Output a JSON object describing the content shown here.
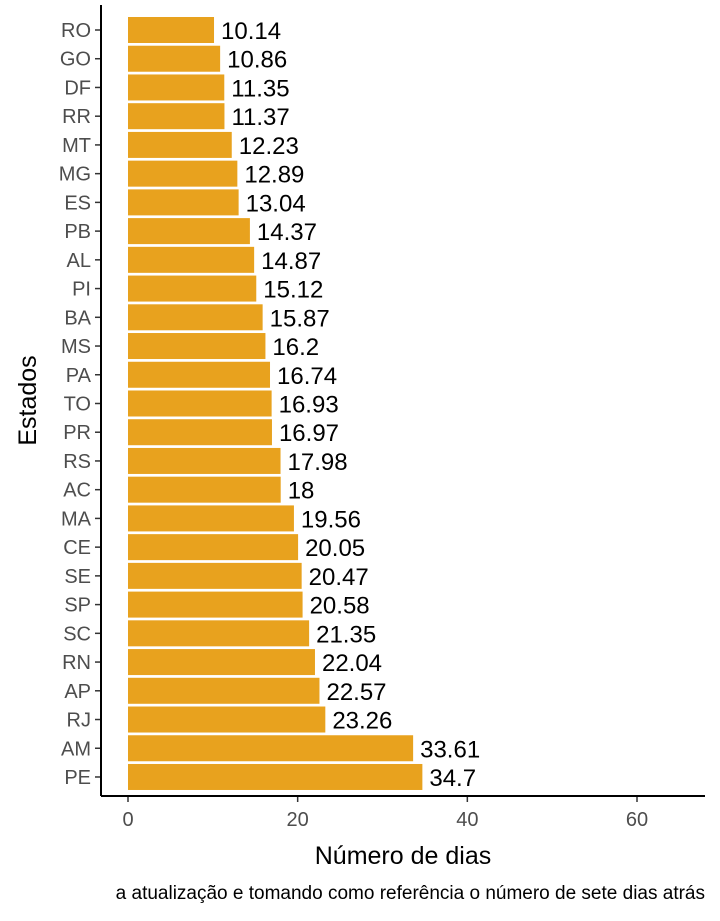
{
  "chart_data": {
    "type": "bar",
    "orientation": "horizontal",
    "categories": [
      "RO",
      "GO",
      "DF",
      "RR",
      "MT",
      "MG",
      "ES",
      "PB",
      "AL",
      "PI",
      "BA",
      "MS",
      "PA",
      "TO",
      "PR",
      "RS",
      "AC",
      "MA",
      "CE",
      "SE",
      "SP",
      "SC",
      "RN",
      "AP",
      "RJ",
      "AM",
      "PE"
    ],
    "values": [
      10.14,
      10.86,
      11.35,
      11.37,
      12.23,
      12.89,
      13.04,
      14.37,
      14.87,
      15.12,
      15.87,
      16.2,
      16.74,
      16.93,
      16.97,
      17.98,
      18,
      19.56,
      20.05,
      20.47,
      20.58,
      21.35,
      22.04,
      22.57,
      23.26,
      33.61,
      34.7
    ],
    "value_labels": [
      "10.14",
      "10.86",
      "11.35",
      "11.37",
      "12.23",
      "12.89",
      "13.04",
      "14.37",
      "14.87",
      "15.12",
      "15.87",
      "16.2",
      "16.74",
      "16.93",
      "16.97",
      "17.98",
      "18",
      "19.56",
      "20.05",
      "20.47",
      "20.58",
      "21.35",
      "22.04",
      "22.57",
      "23.26",
      "33.61",
      "34.7"
    ],
    "xlabel": "Número de dias",
    "ylabel": "Estados",
    "xlim": [
      0,
      68
    ],
    "xticks": [
      0,
      20,
      40,
      60
    ],
    "grid": false,
    "bar_color": "#E8A21E",
    "caption": "a atualização e tomando como referência o número de sete dias atrás"
  }
}
